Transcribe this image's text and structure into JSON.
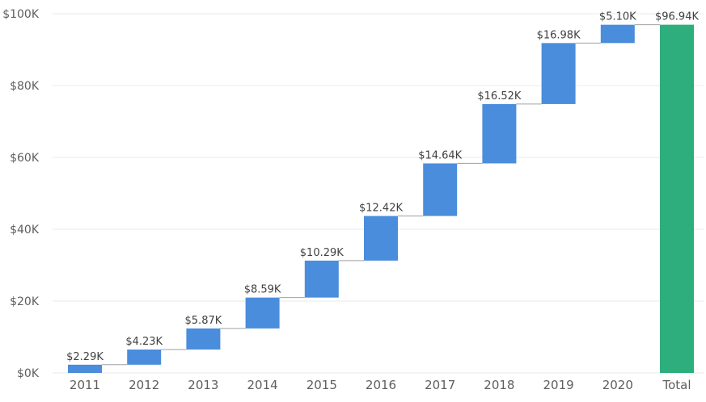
{
  "chart_data": {
    "type": "waterfall",
    "title": "",
    "xlabel": "",
    "ylabel": "",
    "categories": [
      "2011",
      "2012",
      "2013",
      "2014",
      "2015",
      "2016",
      "2017",
      "2018",
      "2019",
      "2020"
    ],
    "values": [
      2.29,
      4.23,
      5.87,
      8.59,
      10.29,
      12.42,
      14.64,
      16.52,
      16.98,
      5.1
    ],
    "value_labels": [
      "$2.29K",
      "$4.23K",
      "$5.87K",
      "$8.59K",
      "$10.29K",
      "$12.42K",
      "$14.64K",
      "$16.52K",
      "$16.98K",
      "$5.10K"
    ],
    "total": {
      "label": "Total",
      "value": 96.94,
      "value_label": "$96.94K"
    },
    "ylim": [
      0,
      100
    ],
    "yticks": [
      0,
      20,
      40,
      60,
      80,
      100
    ],
    "ytick_labels": [
      "$0K",
      "$20K",
      "$40K",
      "$60K",
      "$80K",
      "$100K"
    ],
    "value_unit": "thousands of dollars",
    "grid": true,
    "legend": "none",
    "colors": {
      "increase": "#4a8ddc",
      "total": "#2fae7d",
      "connector": "#a0a0a0",
      "grid": "#e9e9e9",
      "text": "#605e5c"
    }
  }
}
